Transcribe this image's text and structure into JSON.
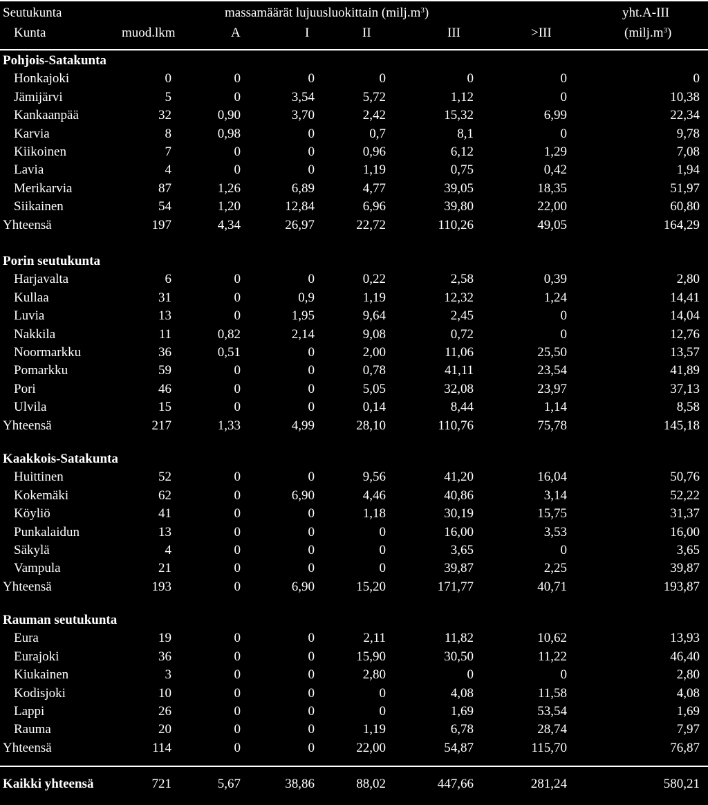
{
  "header": {
    "row1_region": "Seutukunta",
    "row1_span": "massamäärät lujuusluokittain (milj.m",
    "row1_span_sup": "3",
    "row1_span_end": ")",
    "row1_total": "yht.A-III",
    "row2_kunta": "Kunta",
    "col_muod": "muod.lkm",
    "col_a": "A",
    "col_i": "I",
    "col_ii": "II",
    "col_iii": "III",
    "col_gt3": ">III",
    "col_total_unit": "(milj.m",
    "col_total_sup": "3",
    "col_total_end": ")"
  },
  "groups": [
    {
      "title": "Pohjois-Satakunta",
      "rows": [
        [
          "Honkajoki",
          "0",
          "0",
          "0",
          "0",
          "0",
          "0",
          "0"
        ],
        [
          "Jämijärvi",
          "5",
          "0",
          "3,54",
          "5,72",
          "1,12",
          "0",
          "10,38"
        ],
        [
          "Kankaanpää",
          "32",
          "0,90",
          "3,70",
          "2,42",
          "15,32",
          "6,99",
          "22,34"
        ],
        [
          "Karvia",
          "8",
          "0,98",
          "0",
          "0,7",
          "8,1",
          "0",
          "9,78"
        ],
        [
          "Kiikoinen",
          "7",
          "0",
          "0",
          "0,96",
          "6,12",
          "1,29",
          "7,08"
        ],
        [
          "Lavia",
          "4",
          "0",
          "0",
          "1,19",
          "0,75",
          "0,42",
          "1,94"
        ],
        [
          "Merikarvia",
          "87",
          "1,26",
          "6,89",
          "4,77",
          "39,05",
          "18,35",
          "51,97"
        ],
        [
          "Siikainen",
          "54",
          "1,20",
          "12,84",
          "6,96",
          "39,80",
          "22,00",
          "60,80"
        ]
      ],
      "total": [
        "Yhteensä",
        "197",
        "4,34",
        "26,97",
        "22,72",
        "110,26",
        "49,05",
        "164,29"
      ]
    },
    {
      "title": "Porin seutukunta",
      "rows": [
        [
          "Harjavalta",
          "6",
          "0",
          "0",
          "0,22",
          "2,58",
          "0,39",
          "2,80"
        ],
        [
          "Kullaa",
          "31",
          "0",
          "0,9",
          "1,19",
          "12,32",
          "1,24",
          "14,41"
        ],
        [
          "Luvia",
          "13",
          "0",
          "1,95",
          "9,64",
          "2,45",
          "0",
          "14,04"
        ],
        [
          "Nakkila",
          "11",
          "0,82",
          "2,14",
          "9,08",
          "0,72",
          "0",
          "12,76"
        ],
        [
          "Noormarkku",
          "36",
          "0,51",
          "0",
          "2,00",
          "11,06",
          "25,50",
          "13,57"
        ],
        [
          "Pomarkku",
          "59",
          "0",
          "0",
          "0,78",
          "41,11",
          "23,54",
          "41,89"
        ],
        [
          "Pori",
          "46",
          "0",
          "0",
          "5,05",
          "32,08",
          "23,97",
          "37,13"
        ],
        [
          "Ulvila",
          "15",
          "0",
          "0",
          "0,14",
          "8,44",
          "1,14",
          "8,58"
        ]
      ],
      "total": [
        "Yhteensä",
        "217",
        "1,33",
        "4,99",
        "28,10",
        "110,76",
        "75,78",
        "145,18"
      ]
    },
    {
      "title": "Kaakkois-Satakunta",
      "rows": [
        [
          "Huittinen",
          "52",
          "0",
          "0",
          "9,56",
          "41,20",
          "16,04",
          "50,76"
        ],
        [
          "Kokemäki",
          "62",
          "0",
          "6,90",
          "4,46",
          "40,86",
          "3,14",
          "52,22"
        ],
        [
          "Köyliö",
          "41",
          "0",
          "0",
          "1,18",
          "30,19",
          "15,75",
          "31,37"
        ],
        [
          "Punkalaidun",
          "13",
          "0",
          "0",
          "0",
          "16,00",
          "3,53",
          "16,00"
        ],
        [
          "Säkylä",
          "4",
          "0",
          "0",
          "0",
          "3,65",
          "0",
          "3,65"
        ],
        [
          "Vampula",
          "21",
          "0",
          "0",
          "0",
          "39,87",
          "2,25",
          "39,87"
        ]
      ],
      "total": [
        "Yhteensä",
        "193",
        "0",
        "6,90",
        "15,20",
        "171,77",
        "40,71",
        "193,87"
      ]
    },
    {
      "title": "Rauman seutukunta",
      "rows": [
        [
          "Eura",
          "19",
          "0",
          "0",
          "2,11",
          "11,82",
          "10,62",
          "13,93"
        ],
        [
          "Eurajoki",
          "36",
          "0",
          "0",
          "15,90",
          "30,50",
          "11,22",
          "46,40"
        ],
        [
          "Kiukainen",
          "3",
          "0",
          "0",
          "2,80",
          "0",
          "0",
          "2,80"
        ],
        [
          "Kodisjoki",
          "10",
          "0",
          "0",
          "0",
          "4,08",
          "11,58",
          "4,08"
        ],
        [
          "Lappi",
          "26",
          "0",
          "0",
          "0",
          "1,69",
          "53,54",
          "1,69"
        ],
        [
          "Rauma",
          "20",
          "0",
          "0",
          "1,19",
          "6,78",
          "28,74",
          "7,97"
        ]
      ],
      "total": [
        "Yhteensä",
        "114",
        "0",
        "0",
        "22,00",
        "54,87",
        "115,70",
        "76,87"
      ]
    }
  ],
  "grand_total": [
    "Kaikki yhteensä",
    "721",
    "5,67",
    "38,86",
    "88,02",
    "447,66",
    "281,24",
    "580,21"
  ]
}
